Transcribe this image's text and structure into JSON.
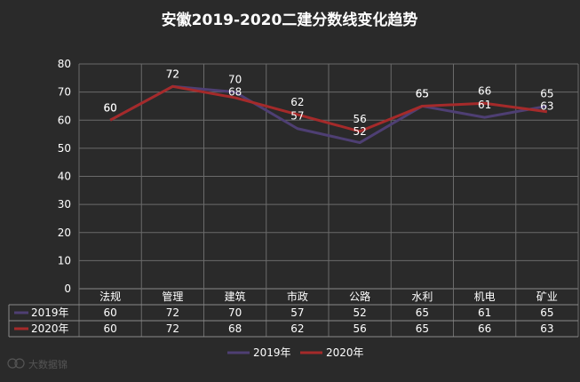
{
  "chart_data": {
    "type": "line",
    "title": "安徽2019-2020二建分数线变化趋势",
    "categories": [
      "法规",
      "管理",
      "建筑",
      "市政",
      "公路",
      "水利",
      "机电",
      "矿业"
    ],
    "ylim": [
      0,
      80
    ],
    "yticks": [
      0,
      10,
      20,
      30,
      40,
      50,
      60,
      70,
      80
    ],
    "grid": true,
    "legend_position": "bottom",
    "data_table": true,
    "series": [
      {
        "name": "2019年",
        "color": "#4e3f73",
        "values": [
          60,
          72,
          70,
          57,
          52,
          65,
          61,
          65
        ]
      },
      {
        "name": "2020年",
        "color": "#a52a2a",
        "values": [
          60,
          72,
          68,
          62,
          56,
          65,
          66,
          63
        ]
      }
    ]
  },
  "watermark": {
    "text": "大数据锦"
  }
}
